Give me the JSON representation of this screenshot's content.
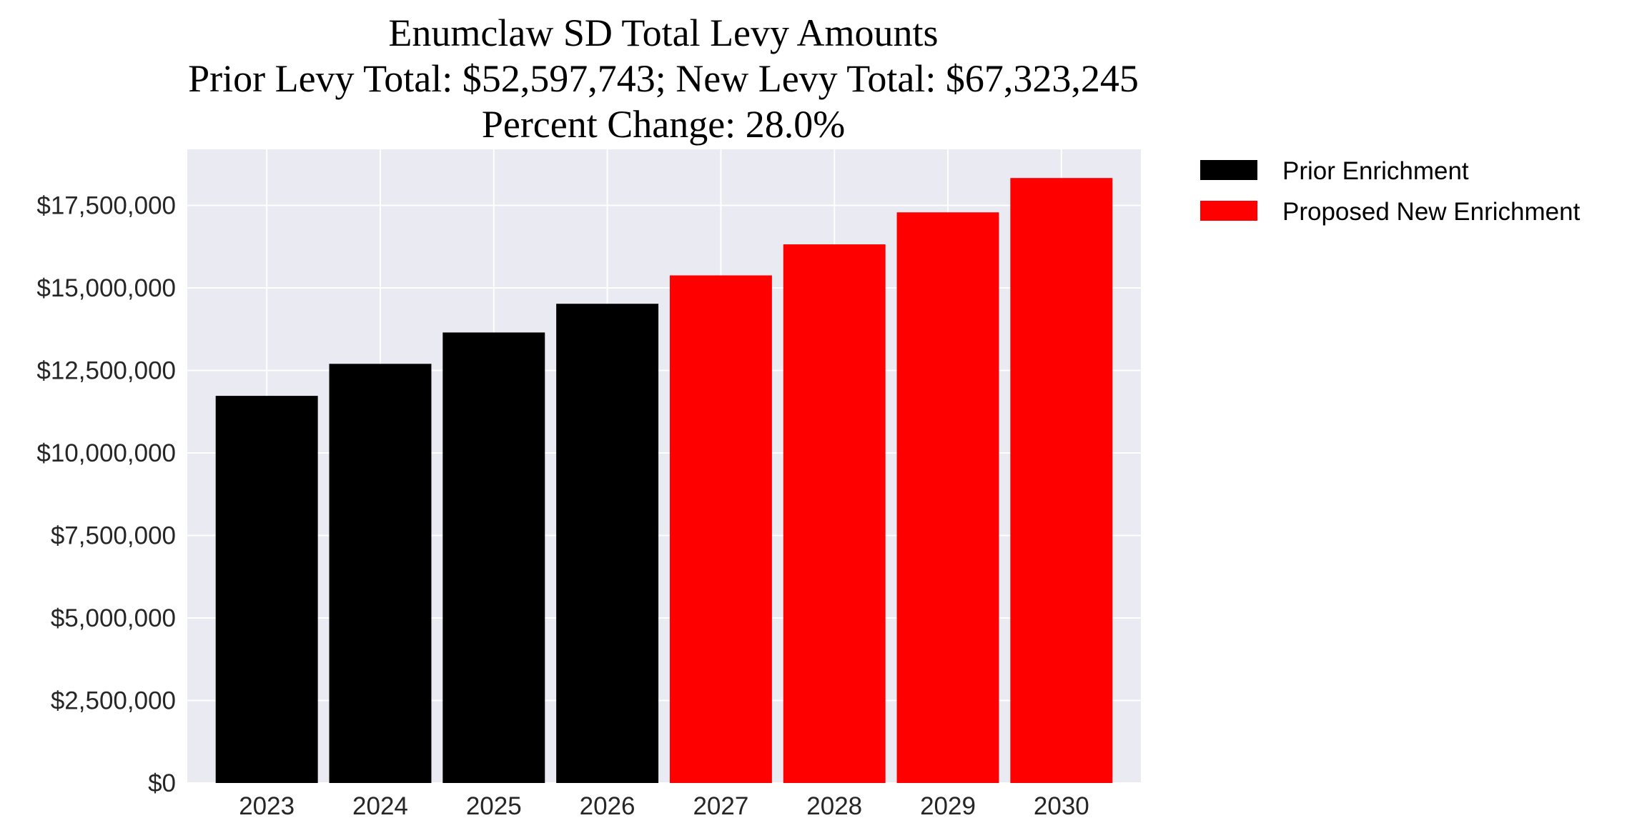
{
  "chart_data": {
    "type": "bar",
    "title": [
      "Enumclaw SD Total Levy Amounts",
      "Prior Levy Total:  $52,597,743; New Levy Total: $67,323,245",
      "Percent Change: 28.0%"
    ],
    "xlabel": "",
    "ylabel": "",
    "categories": [
      "2023",
      "2024",
      "2025",
      "2026",
      "2027",
      "2028",
      "2029",
      "2030"
    ],
    "series": [
      {
        "name": "Prior Enrichment",
        "color": "#000000",
        "values": [
          11730000,
          12700000,
          13650000,
          14520000,
          null,
          null,
          null,
          null
        ]
      },
      {
        "name": "Proposed New Enrichment",
        "color": "#ff0000",
        "values": [
          null,
          null,
          null,
          null,
          15380000,
          16320000,
          17290000,
          18330000
        ]
      }
    ],
    "ylim": [
      0,
      19200000
    ],
    "yticks": [
      0,
      2500000,
      5000000,
      7500000,
      10000000,
      12500000,
      15000000,
      17500000
    ],
    "ytick_labels": [
      "$0",
      "$2,500,000",
      "$5,000,000",
      "$7,500,000",
      "$10,000,000",
      "$12,500,000",
      "$15,000,000",
      "$17,500,000"
    ],
    "grid": true,
    "background": "#eaeaf2",
    "legend_placement": "outside-top-right"
  }
}
